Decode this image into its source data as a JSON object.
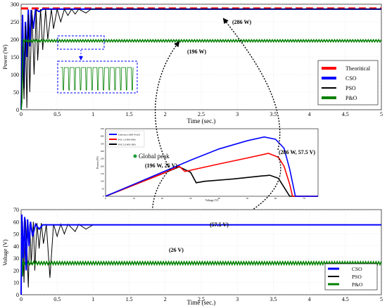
{
  "chart_data": [
    {
      "id": "power",
      "type": "line",
      "ylabel": "Power (W)",
      "xlabel": "Time (sec.)",
      "xlim": [
        0,
        5
      ],
      "ylim": [
        0,
        300
      ],
      "xticks": [
        "0",
        "0.5",
        "1",
        "1.5",
        "2",
        "2.5",
        "3",
        "3.5",
        "4",
        "4.5",
        "5"
      ],
      "yticks": [
        "0",
        "50",
        "100",
        "150",
        "200",
        "250",
        "300"
      ],
      "legend_position": "right",
      "series": [
        {
          "name": "Theoritical",
          "color": "#ff0000",
          "style": "dashed",
          "steady": 288,
          "points": [
            [
              0,
              288
            ],
            [
              5,
              288
            ]
          ]
        },
        {
          "name": "CSO",
          "color": "#0000ff",
          "style": "solid",
          "steady": 286,
          "points": [
            [
              0,
              0
            ],
            [
              0.02,
              270
            ],
            [
              0.04,
              60
            ],
            [
              0.06,
              250
            ],
            [
              0.08,
              150
            ],
            [
              0.1,
              285
            ],
            [
              0.12,
              180
            ],
            [
              0.14,
              284
            ],
            [
              0.17,
              230
            ],
            [
              0.2,
              285
            ],
            [
              0.25,
              279
            ],
            [
              0.3,
              286
            ],
            [
              5,
              286
            ]
          ]
        },
        {
          "name": "PSO",
          "color": "#000000",
          "style": "solid",
          "steady": 286,
          "points": [
            [
              0,
              0
            ],
            [
              0.02,
              180
            ],
            [
              0.04,
              30
            ],
            [
              0.06,
              240
            ],
            [
              0.08,
              5
            ],
            [
              0.1,
              270
            ],
            [
              0.12,
              50
            ],
            [
              0.15,
              282
            ],
            [
              0.18,
              100
            ],
            [
              0.21,
              284
            ],
            [
              0.23,
              140
            ],
            [
              0.27,
              286
            ],
            [
              0.3,
              170
            ],
            [
              0.34,
              286
            ],
            [
              0.37,
              200
            ],
            [
              0.42,
              286
            ],
            [
              0.45,
              230
            ],
            [
              0.5,
              286
            ],
            [
              0.55,
              250
            ],
            [
              0.6,
              286
            ],
            [
              0.65,
              268
            ],
            [
              0.7,
              286
            ],
            [
              0.75,
              272
            ],
            [
              0.8,
              286
            ],
            [
              0.9,
              275
            ],
            [
              0.97,
              286
            ],
            [
              5,
              286
            ]
          ]
        },
        {
          "name": "P&O",
          "color": "#008000",
          "style": "solid",
          "steady": 196,
          "ripple": 3,
          "points": [
            [
              0,
              0
            ],
            [
              0.01,
              20
            ],
            [
              0.03,
              196
            ],
            [
              5,
              196
            ]
          ]
        }
      ],
      "annotations": [
        "(286 W)",
        "(196 W)"
      ]
    },
    {
      "id": "inset",
      "type": "line",
      "ylabel": "Power (W)",
      "xlabel": "Voltage (V)",
      "xlim": [
        0,
        75
      ],
      "ylim": [
        0,
        450
      ],
      "xticks": [
        "0",
        "10",
        "20",
        "30",
        "40",
        "50",
        "60",
        "70"
      ],
      "yticks": [
        "0",
        "50",
        "100",
        "150",
        "200",
        "250",
        "300",
        "350",
        "400",
        "450"
      ],
      "legend": [
        "Uniform (1000 W/m²)",
        "PSC1 (1000-600)",
        "PSC2 (1000-300)"
      ],
      "series": [
        {
          "name": "Uniform (1000 W/m²)",
          "color": "#0000ff",
          "points": [
            [
              0,
              0
            ],
            [
              10,
              80
            ],
            [
              20,
              160
            ],
            [
              30,
              240
            ],
            [
              40,
              315
            ],
            [
              50,
              370
            ],
            [
              56,
              395
            ],
            [
              60,
              380
            ],
            [
              63,
              320
            ],
            [
              65,
              180
            ],
            [
              67,
              0
            ],
            [
              75,
              0
            ]
          ]
        },
        {
          "name": "PSC1 (1000-600)",
          "color": "#ff0000",
          "points": [
            [
              0,
              0
            ],
            [
              10,
              75
            ],
            [
              20,
              150
            ],
            [
              26,
              200
            ],
            [
              28,
              165
            ],
            [
              40,
              215
            ],
            [
              50,
              255
            ],
            [
              57.5,
              286
            ],
            [
              61,
              260
            ],
            [
              63,
              200
            ],
            [
              65,
              80
            ],
            [
              66,
              0
            ],
            [
              75,
              0
            ]
          ]
        },
        {
          "name": "PSC2 (1000-300)",
          "color": "#000000",
          "points": [
            [
              0,
              0
            ],
            [
              10,
              75
            ],
            [
              20,
              150
            ],
            [
              26,
              196
            ],
            [
              30,
              160
            ],
            [
              32,
              90
            ],
            [
              35,
              100
            ],
            [
              45,
              115
            ],
            [
              55,
              135
            ],
            [
              58,
              140
            ],
            [
              61,
              120
            ],
            [
              63,
              60
            ],
            [
              65,
              0
            ],
            [
              75,
              0
            ]
          ]
        }
      ],
      "annotations": [
        "Global peak",
        "(196 W, 26 V)",
        "(286 W, 57.5 V)"
      ]
    },
    {
      "id": "voltage",
      "type": "line",
      "ylabel": "Voltage (V)",
      "xlabel": "Time (sec.)",
      "xlim": [
        0,
        5
      ],
      "ylim": [
        0,
        70
      ],
      "xticks": [
        "0",
        "0.5",
        "1",
        "1.5",
        "2",
        "2.5",
        "3",
        "3.5",
        "4",
        "4.5",
        "5"
      ],
      "yticks": [
        "0",
        "10",
        "20",
        "30",
        "40",
        "50",
        "60",
        "70"
      ],
      "legend_position": "right",
      "series": [
        {
          "name": "CSO",
          "color": "#0000ff",
          "style": "solid",
          "steady": 57.5,
          "points": [
            [
              0,
              0
            ],
            [
              0.01,
              66
            ],
            [
              0.03,
              30
            ],
            [
              0.05,
              64
            ],
            [
              0.07,
              20
            ],
            [
              0.09,
              62
            ],
            [
              0.11,
              40
            ],
            [
              0.13,
              60
            ],
            [
              0.16,
              48
            ],
            [
              0.2,
              58
            ],
            [
              0.25,
              54
            ],
            [
              0.3,
              57.5
            ],
            [
              5,
              57.5
            ]
          ]
        },
        {
          "name": "PSO",
          "color": "#000000",
          "style": "solid",
          "steady": 57.5,
          "points": [
            [
              0,
              0
            ],
            [
              0.02,
              60
            ],
            [
              0.04,
              10
            ],
            [
              0.06,
              62
            ],
            [
              0.08,
              40
            ],
            [
              0.1,
              6
            ],
            [
              0.12,
              58
            ],
            [
              0.14,
              25
            ],
            [
              0.17,
              60
            ],
            [
              0.19,
              20
            ],
            [
              0.22,
              59
            ],
            [
              0.25,
              38
            ],
            [
              0.28,
              59
            ],
            [
              0.31,
              42
            ],
            [
              0.35,
              58
            ],
            [
              0.4,
              14
            ],
            [
              0.45,
              58
            ],
            [
              0.5,
              48
            ],
            [
              0.55,
              58
            ],
            [
              0.6,
              50
            ],
            [
              0.65,
              58
            ],
            [
              0.75,
              52
            ],
            [
              0.8,
              58
            ],
            [
              0.9,
              54
            ],
            [
              1.0,
              57.5
            ],
            [
              5,
              57.5
            ]
          ]
        },
        {
          "name": "P&O",
          "color": "#008000",
          "style": "solid",
          "steady": 26,
          "ripple": 1.2,
          "points": [
            [
              0,
              60
            ],
            [
              0.01,
              58
            ],
            [
              0.02,
              15
            ],
            [
              0.03,
              26
            ],
            [
              5,
              26
            ]
          ]
        }
      ],
      "annotations": [
        "(57.5 V)",
        "(26 V)"
      ]
    }
  ]
}
